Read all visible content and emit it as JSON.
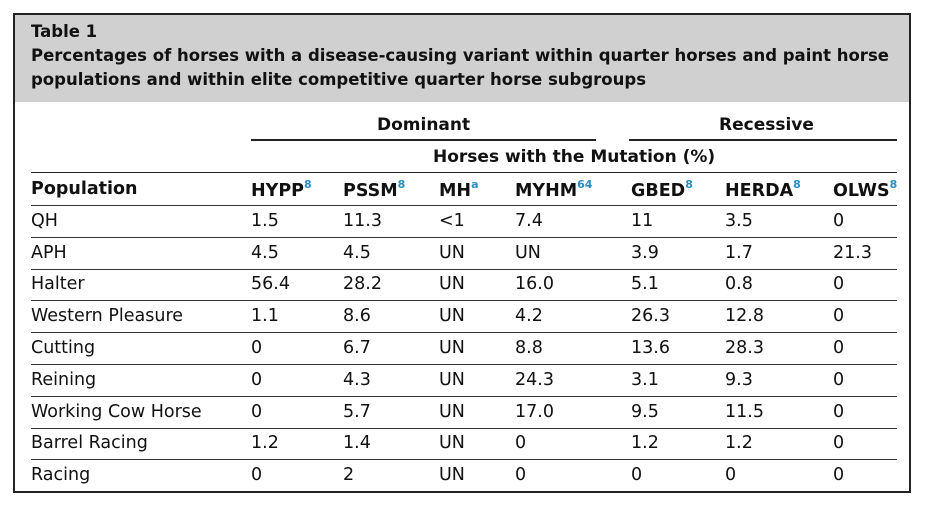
{
  "caption": {
    "table_number": "Table 1",
    "title": "Percentages of horses with a disease-causing variant within quarter horses and paint horse populations and within elite competitive quarter horse subgroups"
  },
  "groups": {
    "dominant": "Dominant",
    "recessive": "Recessive"
  },
  "subheader": "Horses with the Mutation (%)",
  "columns": [
    {
      "label": "Population",
      "sup": ""
    },
    {
      "label": "HYPP",
      "sup": "8"
    },
    {
      "label": "PSSM",
      "sup": "8"
    },
    {
      "label": "MH",
      "sup": "a"
    },
    {
      "label": "MYHM",
      "sup": "64"
    },
    {
      "label": "GBED",
      "sup": "8"
    },
    {
      "label": "HERDA",
      "sup": "8"
    },
    {
      "label": "OLWS",
      "sup": "8"
    }
  ],
  "rows": [
    [
      "QH",
      "1.5",
      "11.3",
      "<1",
      "7.4",
      "11",
      "3.5",
      "0"
    ],
    [
      "APH",
      "4.5",
      "4.5",
      "UN",
      "UN",
      "3.9",
      "1.7",
      "21.3"
    ],
    [
      "Halter",
      "56.4",
      "28.2",
      "UN",
      "16.0",
      "5.1",
      "0.8",
      "0"
    ],
    [
      "Western Pleasure",
      "1.1",
      "8.6",
      "UN",
      "4.2",
      "26.3",
      "12.8",
      "0"
    ],
    [
      "Cutting",
      "0",
      "6.7",
      "UN",
      "8.8",
      "13.6",
      "28.3",
      "0"
    ],
    [
      "Reining",
      "0",
      "4.3",
      "UN",
      "24.3",
      "3.1",
      "9.3",
      "0"
    ],
    [
      "Working Cow Horse",
      "0",
      "5.7",
      "UN",
      "17.0",
      "9.5",
      "11.5",
      "0"
    ],
    [
      "Barrel Racing",
      "1.2",
      "1.4",
      "UN",
      "0",
      "1.2",
      "1.2",
      "0"
    ],
    [
      "Racing",
      "0",
      "2",
      "UN",
      "0",
      "0",
      "0",
      "0"
    ]
  ]
}
